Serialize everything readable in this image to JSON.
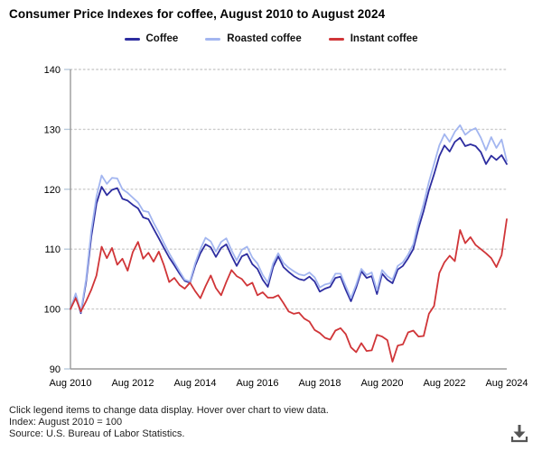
{
  "header": {
    "title": "Consumer Price Indexes for coffee, August 2010 to August 2024"
  },
  "chart_data": {
    "type": "line",
    "title": "Consumer Price Indexes for coffee, August 2010 to August 2024",
    "x_axis": {
      "start": "Aug 2010",
      "end": "Aug 2024",
      "tick_labels": [
        "Aug 2010",
        "Aug 2012",
        "Aug 2014",
        "Aug 2016",
        "Aug 2018",
        "Aug 2020",
        "Aug 2022",
        "Aug 2024"
      ],
      "tick_interval_months": 24
    },
    "y_axis": {
      "min": 90,
      "max": 140,
      "ticks": [
        90,
        100,
        110,
        120,
        130,
        140
      ]
    },
    "grid": "dotted-horizontal",
    "legend_position": "top",
    "sample_interval_months": 2,
    "series": [
      {
        "name": "Coffee",
        "color": "#2d2da0",
        "values": [
          100.0,
          102.4,
          99.3,
          104.5,
          112.0,
          117.6,
          120.4,
          119.0,
          119.9,
          120.2,
          118.4,
          118.1,
          117.4,
          116.8,
          115.3,
          115.0,
          113.4,
          111.8,
          110.2,
          108.6,
          107.3,
          105.9,
          104.7,
          104.4,
          107.2,
          109.3,
          110.8,
          110.3,
          108.7,
          110.2,
          110.8,
          108.9,
          107.2,
          108.8,
          109.2,
          107.5,
          106.7,
          104.9,
          103.7,
          107.0,
          108.8,
          107.0,
          106.2,
          105.5,
          105.0,
          104.8,
          105.4,
          104.6,
          102.9,
          103.4,
          103.7,
          105.2,
          105.4,
          103.2,
          101.3,
          103.6,
          106.3,
          105.2,
          105.5,
          102.5,
          105.9,
          104.9,
          104.3,
          106.6,
          107.2,
          108.5,
          110.0,
          113.5,
          116.4,
          119.8,
          122.5,
          125.5,
          127.3,
          126.3,
          127.9,
          128.6,
          127.2,
          127.5,
          127.2,
          126.2,
          124.2,
          125.6,
          124.9,
          125.7,
          124.2
        ]
      },
      {
        "name": "Roasted coffee",
        "color": "#a3b6f0",
        "values": [
          100.0,
          102.6,
          99.5,
          105.0,
          113.0,
          118.8,
          122.3,
          120.9,
          121.9,
          121.8,
          120.0,
          119.4,
          118.6,
          117.8,
          116.4,
          116.2,
          114.4,
          112.8,
          111.0,
          109.3,
          107.8,
          106.3,
          104.9,
          104.6,
          107.6,
          110.0,
          111.9,
          111.3,
          109.6,
          111.2,
          111.8,
          109.8,
          108.1,
          109.9,
          110.4,
          108.6,
          107.6,
          105.7,
          104.4,
          107.6,
          109.3,
          107.7,
          106.9,
          106.3,
          105.8,
          105.6,
          106.1,
          105.3,
          103.6,
          104.1,
          104.3,
          105.9,
          105.9,
          103.8,
          101.8,
          104.1,
          106.7,
          105.7,
          106.1,
          103.1,
          106.5,
          105.5,
          104.9,
          107.2,
          107.8,
          109.1,
          110.8,
          114.5,
          117.6,
          121.2,
          124.2,
          127.3,
          129.2,
          127.9,
          129.6,
          130.7,
          129.1,
          129.8,
          130.2,
          128.6,
          126.5,
          128.7,
          126.9,
          128.3,
          124.7
        ]
      },
      {
        "name": "Instant coffee",
        "color": "#d03538",
        "values": [
          100.0,
          101.8,
          99.6,
          101.3,
          103.2,
          105.6,
          110.4,
          108.5,
          110.2,
          107.4,
          108.4,
          106.4,
          109.5,
          111.2,
          108.4,
          109.4,
          107.9,
          109.6,
          107.3,
          104.5,
          105.2,
          104.0,
          103.4,
          104.4,
          103.0,
          101.8,
          103.8,
          105.6,
          103.5,
          102.3,
          104.5,
          106.5,
          105.5,
          105.0,
          103.9,
          104.4,
          102.3,
          102.8,
          101.9,
          101.9,
          102.3,
          101.0,
          99.6,
          99.2,
          99.4,
          98.4,
          97.9,
          96.5,
          96.0,
          95.2,
          94.9,
          96.4,
          96.8,
          95.8,
          93.6,
          92.8,
          94.3,
          93.0,
          93.1,
          95.7,
          95.4,
          94.8,
          91.2,
          93.9,
          94.1,
          96.1,
          96.4,
          95.4,
          95.5,
          99.2,
          100.5,
          106.0,
          107.8,
          108.9,
          108.0,
          113.2,
          111.0,
          112.0,
          110.7,
          110.0,
          109.3,
          108.5,
          107.0,
          109.0,
          115.0
        ]
      }
    ],
    "style": {
      "axis_color": "#9a9a9a",
      "gridline_color": "#cccccc",
      "tick_color": "#b9cadb"
    }
  },
  "footer": {
    "line1": "Click legend items to change data display. Hover over chart to view data.",
    "line2": "Index: August 2010 = 100",
    "line3": "Source: U.S. Bureau of Labor Statistics."
  },
  "icons": {
    "download": "download-chart"
  }
}
